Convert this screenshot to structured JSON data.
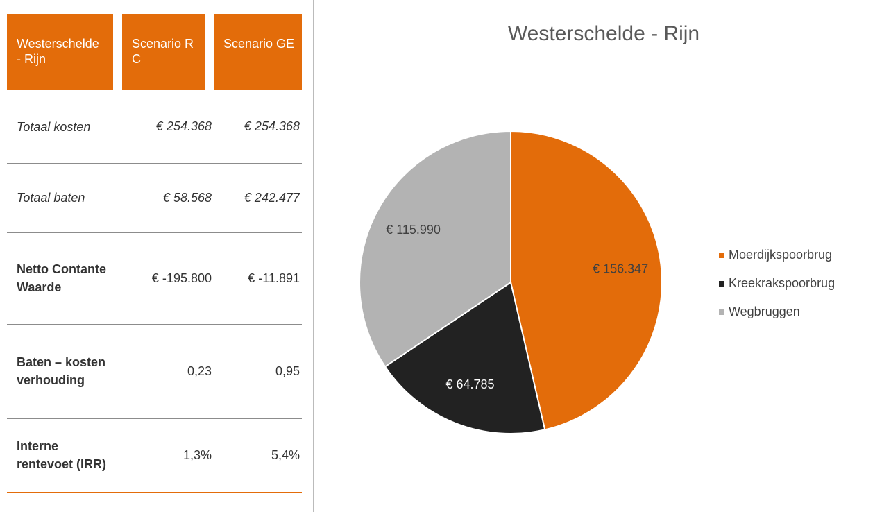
{
  "table": {
    "header": [
      "Westerschelde - Rijn",
      "Scenario RC",
      "Scenario GE"
    ],
    "rows": [
      [
        "Totaal kosten",
        "€ 254.368",
        "€ 254.368"
      ],
      [
        "Totaal baten",
        "€ 58.568",
        "€ 242.477"
      ],
      [
        "Netto Contante Waarde",
        "€ -195.800",
        "€ -11.891"
      ],
      [
        "Baten – kosten verhouding",
        "0,23",
        "0,95"
      ],
      [
        "Interne rentevoet (IRR)",
        "1,3%",
        "5,4%"
      ]
    ]
  },
  "chart_data": {
    "type": "pie",
    "title": "Westerschelde - Rijn",
    "categories": [
      "Moerdijkspoorbrug",
      "Kreekrakspoorbrug",
      "Wegbruggen"
    ],
    "values": [
      156347,
      64785,
      115990
    ],
    "value_labels": [
      "€ 156.347",
      "€ 64.785",
      "€ 115.990"
    ],
    "colors": [
      "#e36c0a",
      "#222222",
      "#b3b3b3"
    ],
    "legend": "right"
  }
}
